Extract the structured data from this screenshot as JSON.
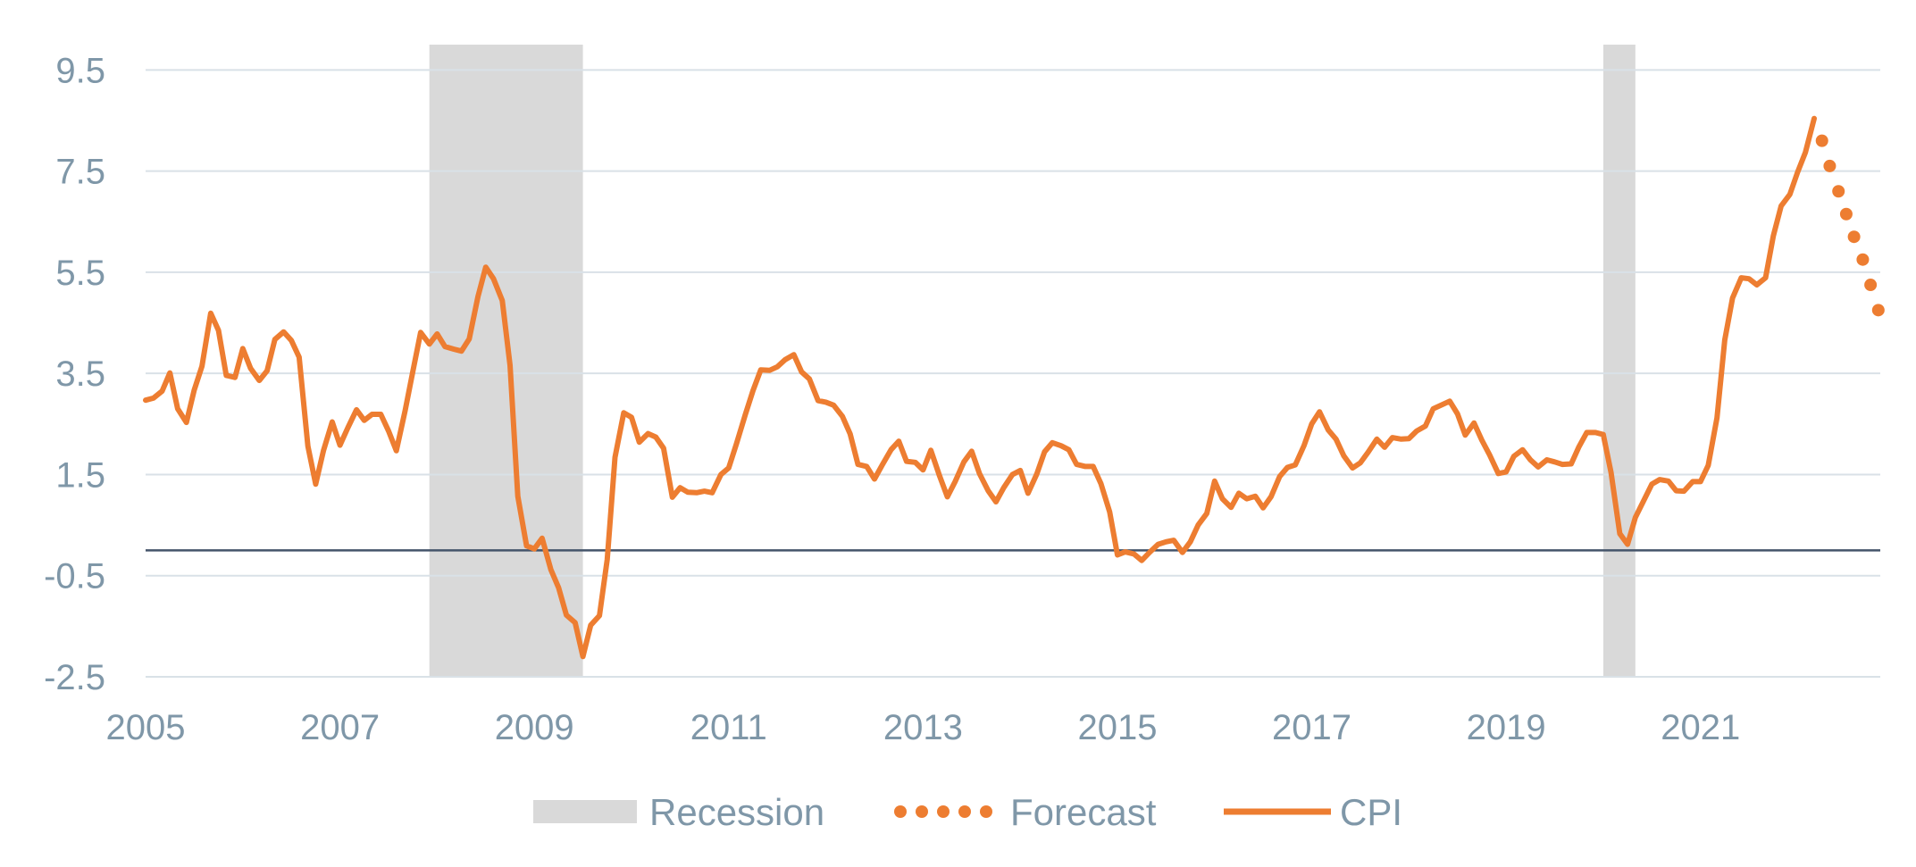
{
  "chart_data": {
    "type": "line",
    "title": "",
    "xlabel": "",
    "ylabel": "",
    "xlim": [
      2005,
      2022.85
    ],
    "ylim": [
      -2.5,
      10
    ],
    "grid": true,
    "legend_position": "bottom",
    "y_ticks": [
      9.5,
      7.5,
      5.5,
      3.5,
      1.5,
      -0.5,
      -2.5
    ],
    "y_tick_labels": [
      "9.5",
      "7.5",
      "5.5",
      "3.5",
      "1.5",
      "-0.5",
      "-2.5"
    ],
    "x_ticks": [
      2005,
      2007,
      2009,
      2011,
      2013,
      2015,
      2017,
      2019,
      2021
    ],
    "x_tick_labels": [
      "2005",
      "2007",
      "2009",
      "2011",
      "2013",
      "2015",
      "2017",
      "2019",
      "2021"
    ],
    "zero_line": 0,
    "recessions": [
      {
        "start": 2007.92,
        "end": 2009.5
      },
      {
        "start": 2020.0,
        "end": 2020.33
      }
    ],
    "series": [
      {
        "name": "CPI",
        "color": "#ed7d31",
        "style": "solid",
        "x": [
          2005.0,
          2005.08,
          2005.17,
          2005.25,
          2005.33,
          2005.42,
          2005.5,
          2005.58,
          2005.67,
          2005.75,
          2005.83,
          2005.92,
          2006.0,
          2006.08,
          2006.17,
          2006.25,
          2006.33,
          2006.42,
          2006.5,
          2006.58,
          2006.67,
          2006.75,
          2006.83,
          2006.92,
          2007.0,
          2007.08,
          2007.17,
          2007.25,
          2007.33,
          2007.42,
          2007.5,
          2007.58,
          2007.67,
          2007.75,
          2007.83,
          2007.92,
          2008.0,
          2008.08,
          2008.17,
          2008.25,
          2008.33,
          2008.42,
          2008.5,
          2008.58,
          2008.67,
          2008.75,
          2008.83,
          2008.92,
          2009.0,
          2009.08,
          2009.17,
          2009.25,
          2009.33,
          2009.42,
          2009.5,
          2009.58,
          2009.67,
          2009.75,
          2009.83,
          2009.92,
          2010.0,
          2010.08,
          2010.17,
          2010.25,
          2010.33,
          2010.42,
          2010.5,
          2010.58,
          2010.67,
          2010.75,
          2010.83,
          2010.92,
          2011.0,
          2011.08,
          2011.17,
          2011.25,
          2011.33,
          2011.42,
          2011.5,
          2011.58,
          2011.67,
          2011.75,
          2011.83,
          2011.92,
          2012.0,
          2012.08,
          2012.17,
          2012.25,
          2012.33,
          2012.42,
          2012.5,
          2012.58,
          2012.67,
          2012.75,
          2012.83,
          2012.92,
          2013.0,
          2013.08,
          2013.17,
          2013.25,
          2013.33,
          2013.42,
          2013.5,
          2013.58,
          2013.67,
          2013.75,
          2013.83,
          2013.92,
          2014.0,
          2014.08,
          2014.17,
          2014.25,
          2014.33,
          2014.42,
          2014.5,
          2014.58,
          2014.67,
          2014.75,
          2014.83,
          2014.92,
          2015.0,
          2015.08,
          2015.17,
          2015.25,
          2015.33,
          2015.42,
          2015.5,
          2015.58,
          2015.67,
          2015.75,
          2015.83,
          2015.92,
          2016.0,
          2016.08,
          2016.17,
          2016.25,
          2016.33,
          2016.42,
          2016.5,
          2016.58,
          2016.67,
          2016.75,
          2016.83,
          2016.92,
          2017.0,
          2017.08,
          2017.17,
          2017.25,
          2017.33,
          2017.42,
          2017.5,
          2017.58,
          2017.67,
          2017.75,
          2017.83,
          2017.92,
          2018.0,
          2018.08,
          2018.17,
          2018.25,
          2018.33,
          2018.42,
          2018.5,
          2018.58,
          2018.67,
          2018.75,
          2018.83,
          2018.92,
          2019.0,
          2019.08,
          2019.17,
          2019.25,
          2019.33,
          2019.42,
          2019.5,
          2019.58,
          2019.67,
          2019.75,
          2019.83,
          2019.92,
          2020.0,
          2020.08,
          2020.17,
          2020.25,
          2020.33,
          2020.42,
          2020.5,
          2020.58,
          2020.67,
          2020.75,
          2020.83,
          2020.92,
          2021.0,
          2021.08,
          2021.17,
          2021.25,
          2021.33,
          2021.42,
          2021.5,
          2021.58,
          2021.67,
          2021.75,
          2021.83,
          2021.92,
          2022.0,
          2022.08,
          2022.17
        ],
        "values": [
          2.97,
          3.01,
          3.15,
          3.51,
          2.8,
          2.53,
          3.17,
          3.64,
          4.69,
          4.35,
          3.46,
          3.42,
          3.99,
          3.6,
          3.36,
          3.55,
          4.17,
          4.32,
          4.15,
          3.82,
          2.06,
          1.31,
          1.97,
          2.54,
          2.08,
          2.42,
          2.78,
          2.57,
          2.69,
          2.69,
          2.36,
          1.97,
          2.76,
          3.54,
          4.31,
          4.08,
          4.28,
          4.03,
          3.98,
          3.94,
          4.18,
          5.02,
          5.6,
          5.37,
          4.94,
          3.66,
          1.07,
          0.09,
          0.03,
          0.24,
          -0.38,
          -0.74,
          -1.28,
          -1.43,
          -2.1,
          -1.48,
          -1.29,
          -0.18,
          1.84,
          2.72,
          2.63,
          2.14,
          2.31,
          2.24,
          2.02,
          1.05,
          1.24,
          1.15,
          1.14,
          1.17,
          1.14,
          1.5,
          1.63,
          2.11,
          2.68,
          3.16,
          3.57,
          3.56,
          3.63,
          3.77,
          3.87,
          3.53,
          3.39,
          2.96,
          2.93,
          2.87,
          2.65,
          2.3,
          1.7,
          1.66,
          1.41,
          1.69,
          1.99,
          2.16,
          1.76,
          1.74,
          1.59,
          1.98,
          1.47,
          1.06,
          1.36,
          1.75,
          1.96,
          1.52,
          1.18,
          0.96,
          1.24,
          1.5,
          1.58,
          1.13,
          1.51,
          1.95,
          2.13,
          2.07,
          1.99,
          1.7,
          1.66,
          1.66,
          1.32,
          0.76,
          -0.09,
          -0.03,
          -0.07,
          -0.2,
          -0.04,
          0.12,
          0.17,
          0.2,
          -0.04,
          0.17,
          0.5,
          0.73,
          1.37,
          1.02,
          0.85,
          1.13,
          1.02,
          1.07,
          0.84,
          1.06,
          1.46,
          1.64,
          1.69,
          2.07,
          2.5,
          2.74,
          2.38,
          2.2,
          1.87,
          1.63,
          1.73,
          1.94,
          2.2,
          2.04,
          2.23,
          2.2,
          2.21,
          2.36,
          2.46,
          2.8,
          2.87,
          2.95,
          2.7,
          2.28,
          2.52,
          2.18,
          1.89,
          1.52,
          1.55,
          1.86,
          1.99,
          1.79,
          1.65,
          1.79,
          1.75,
          1.7,
          1.71,
          2.05,
          2.33,
          2.33,
          2.29,
          1.54,
          0.33,
          0.12,
          0.65,
          1.0,
          1.31,
          1.4,
          1.37,
          1.18,
          1.17,
          1.36,
          1.36,
          1.68,
          2.62,
          4.16,
          4.99,
          5.39,
          5.37,
          5.25,
          5.39,
          6.22,
          6.81,
          7.04,
          7.48,
          7.87,
          8.54
        ]
      },
      {
        "name": "Forecast",
        "color": "#ed7d31",
        "style": "dotted",
        "x": [
          2022.17,
          2022.25,
          2022.33,
          2022.42,
          2022.5,
          2022.58,
          2022.67,
          2022.75,
          2022.83
        ],
        "values": [
          8.54,
          8.1,
          7.6,
          7.1,
          6.65,
          6.2,
          5.75,
          5.25,
          4.75
        ]
      }
    ],
    "legend": [
      {
        "label": "Recession",
        "kind": "band",
        "color": "#d9d9d9"
      },
      {
        "label": "Forecast",
        "kind": "dotted",
        "color": "#ed7d31"
      },
      {
        "label": "CPI",
        "kind": "line",
        "color": "#ed7d31"
      }
    ],
    "colors": {
      "grid": "#d9e1e7",
      "zero_line": "#44546a",
      "recession": "#d9d9d9",
      "tick_text": "#7f97a8",
      "series": "#ed7d31"
    }
  }
}
